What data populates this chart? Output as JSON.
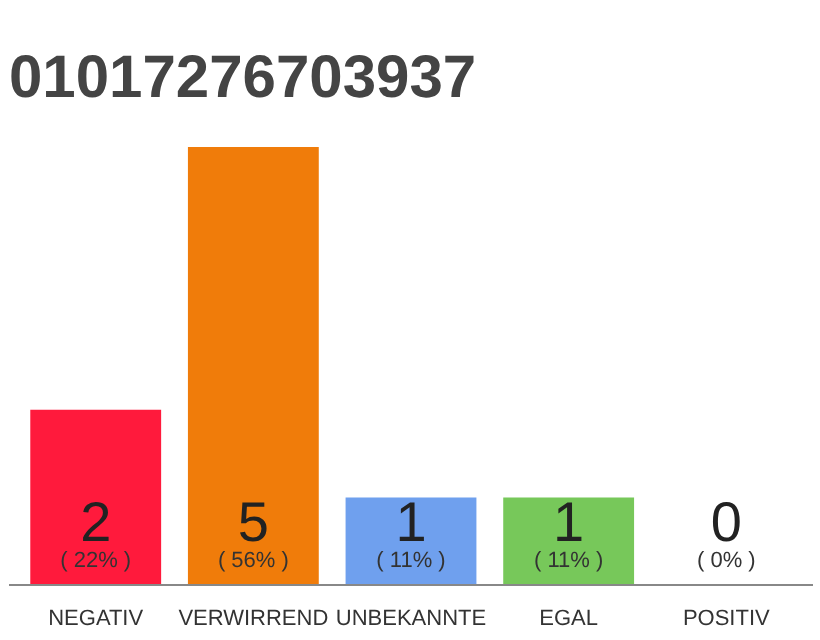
{
  "chart_data": {
    "type": "bar",
    "title": "01017276703937",
    "categories": [
      "NEGATIV",
      "VERWIRREND",
      "UNBEKANNTE",
      "EGAL",
      "POSITIV"
    ],
    "values": [
      2,
      5,
      1,
      1,
      0
    ],
    "colors": [
      "#ff1a3c",
      "#f07c0a",
      "#6fa0ee",
      "#77c85a",
      "#dddddd"
    ],
    "data_labels": true,
    "annotations": [
      "( 22% )",
      "( 56% )",
      "( 11% )",
      "( 11% )",
      "( 0% )"
    ],
    "grid": false
  }
}
